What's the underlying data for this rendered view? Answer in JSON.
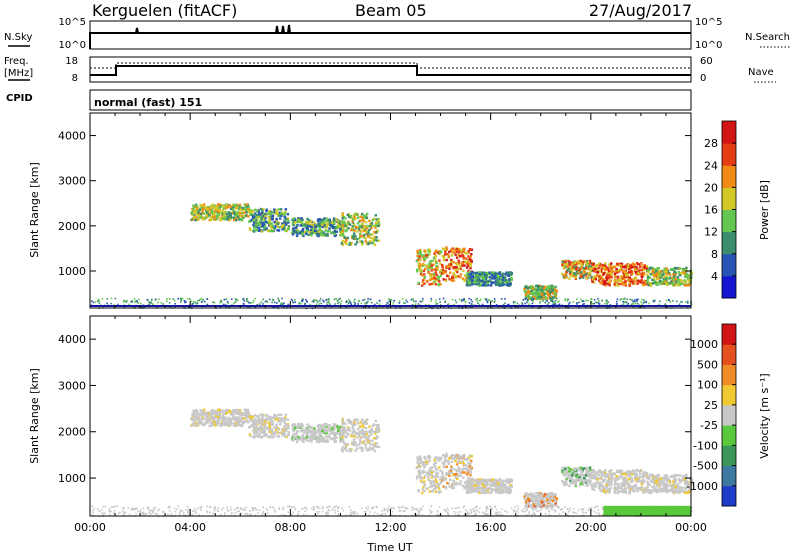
{
  "header": {
    "station": "Kerguelen (fitACF)",
    "beam": "Beam 05",
    "date": "27/Aug/2017"
  },
  "summary": {
    "nsky_label": "N.Sky",
    "nsearch_label": "N.Search",
    "freq_label_1": "Freq.",
    "freq_label_2": "[MHz]",
    "nave_label": "Nave",
    "cpid_label": "CPID",
    "nsky_ticks": [
      "10^5",
      "10^0"
    ],
    "nsearch_ticks": [
      "10^5",
      "10^0"
    ],
    "freq_ticks": [
      "18",
      "8"
    ],
    "nave_ticks": [
      "60",
      "0"
    ],
    "cpid_value": "normal (fast) 151"
  },
  "chart_data": [
    {
      "type": "heatmap",
      "title": "",
      "xlabel": "",
      "ylabel": "Slant Range [km]",
      "colorbar_label": "Power [dB]",
      "colorbar_ticks": [
        "4",
        "8",
        "12",
        "16",
        "20",
        "24",
        "28"
      ],
      "colorbar_colors": [
        "#1414d2",
        "#2855b4",
        "#3c8c6e",
        "#64c850",
        "#d2c828",
        "#f08c14",
        "#e63c14",
        "#d21414"
      ],
      "x_range_hours": [
        0,
        24
      ],
      "ylim": [
        180,
        4500
      ],
      "ytick_labels": [
        "1000",
        "2000",
        "3000",
        "4000"
      ],
      "grid": false
    },
    {
      "type": "heatmap",
      "title": "",
      "xlabel": "Time UT",
      "ylabel": "Slant Range [km]",
      "colorbar_label": "Velocity [m s⁻¹]",
      "colorbar_ticks": [
        "1000",
        "500",
        "100",
        "25",
        "-25",
        "-100",
        "-500",
        "-1000"
      ],
      "colorbar_colors": [
        "#1e3cc8",
        "#3c78a0",
        "#3c965a",
        "#5ac83c",
        "#c8c8c8",
        "#f0c832",
        "#f08c28",
        "#e6501e",
        "#d21414"
      ],
      "x_range_hours": [
        0,
        24
      ],
      "xtick_labels": [
        "00:00",
        "04:00",
        "08:00",
        "12:00",
        "16:00",
        "20:00",
        "00:00"
      ],
      "ylim": [
        180,
        4500
      ],
      "ytick_labels": [
        "1000",
        "2000",
        "3000",
        "4000"
      ],
      "grid": false
    }
  ]
}
